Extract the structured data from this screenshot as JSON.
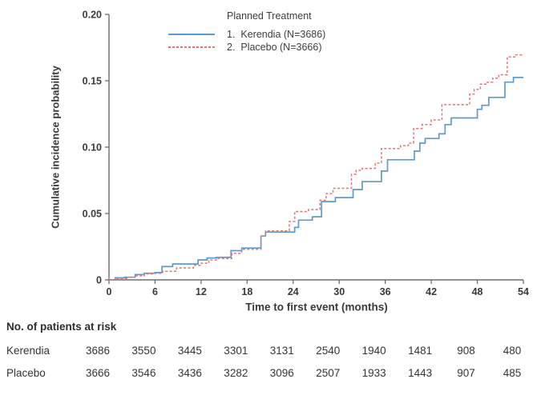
{
  "colors": {
    "axis": "#6d6e71",
    "text": "#3a3a3c",
    "kerendia_blue": "#5b9bd5",
    "placebo_red": "#e8736f"
  },
  "chart_data": {
    "type": "line",
    "step": true,
    "title": "",
    "xlabel": "Time to first event (months)",
    "ylabel": "Cumulative incidence probability",
    "xlim": [
      0,
      54
    ],
    "ylim": [
      0,
      0.2
    ],
    "xticks": [
      0,
      6,
      12,
      18,
      24,
      30,
      36,
      42,
      48,
      54
    ],
    "yticks": [
      0,
      0.05,
      0.1,
      0.15,
      0.2
    ],
    "ytick_labels": [
      "0",
      "0.05",
      "0.10",
      "0.15",
      "0.20"
    ],
    "grid": false,
    "legend": {
      "title": "Planned Treatment",
      "position": "top-left-of-plot"
    },
    "series": [
      {
        "slug": "kerendia",
        "name": "1.  Kerendia (N=3686)",
        "color": "#5b9bd5",
        "dash": "solid",
        "points": [
          [
            0,
            0
          ],
          [
            0.8,
            0.0015
          ],
          [
            2,
            0.002
          ],
          [
            3.4,
            0.004
          ],
          [
            4.6,
            0.005
          ],
          [
            6,
            0.0055
          ],
          [
            6.9,
            0.01
          ],
          [
            8.3,
            0.012
          ],
          [
            11.6,
            0.015
          ],
          [
            12.8,
            0.0165
          ],
          [
            14,
            0.017
          ],
          [
            15.9,
            0.022
          ],
          [
            17.3,
            0.024
          ],
          [
            19.8,
            0.033
          ],
          [
            20.4,
            0.036
          ],
          [
            24.2,
            0.0395
          ],
          [
            24.7,
            0.045
          ],
          [
            26.5,
            0.0475
          ],
          [
            27.7,
            0.059
          ],
          [
            29.5,
            0.062
          ],
          [
            31.8,
            0.068
          ],
          [
            33,
            0.074
          ],
          [
            35.5,
            0.082
          ],
          [
            36.3,
            0.0905
          ],
          [
            39.8,
            0.097
          ],
          [
            40.5,
            0.103
          ],
          [
            41.2,
            0.1065
          ],
          [
            43,
            0.11
          ],
          [
            43.8,
            0.117
          ],
          [
            44.6,
            0.122
          ],
          [
            48,
            0.1285
          ],
          [
            48.6,
            0.1315
          ],
          [
            49.5,
            0.1375
          ],
          [
            51.6,
            0.149
          ],
          [
            52.7,
            0.1525
          ],
          [
            54,
            0.1525
          ]
        ]
      },
      {
        "slug": "placebo",
        "name": "2.  Placebo (N=3666)",
        "color": "#e8736f",
        "dash": "dashed",
        "points": [
          [
            0,
            0
          ],
          [
            1,
            0.001
          ],
          [
            2.5,
            0.002
          ],
          [
            3.5,
            0.003
          ],
          [
            4.6,
            0.0045
          ],
          [
            6,
            0.005
          ],
          [
            7,
            0.0065
          ],
          [
            8.8,
            0.009
          ],
          [
            11,
            0.011
          ],
          [
            11.9,
            0.0125
          ],
          [
            13,
            0.015
          ],
          [
            14,
            0.016
          ],
          [
            16,
            0.02
          ],
          [
            17.3,
            0.023
          ],
          [
            19.8,
            0.033
          ],
          [
            20.4,
            0.037
          ],
          [
            23.5,
            0.044
          ],
          [
            24.2,
            0.0515
          ],
          [
            26,
            0.053
          ],
          [
            27.5,
            0.06
          ],
          [
            28.3,
            0.065
          ],
          [
            29.2,
            0.069
          ],
          [
            31.6,
            0.0795
          ],
          [
            32.2,
            0.0825
          ],
          [
            33,
            0.084
          ],
          [
            34.7,
            0.088
          ],
          [
            35.5,
            0.099
          ],
          [
            38,
            0.101
          ],
          [
            39,
            0.103
          ],
          [
            39.7,
            0.114
          ],
          [
            40.8,
            0.117
          ],
          [
            42,
            0.1205
          ],
          [
            43.4,
            0.132
          ],
          [
            47,
            0.14
          ],
          [
            47.6,
            0.1435
          ],
          [
            48.4,
            0.1475
          ],
          [
            49.3,
            0.149
          ],
          [
            50,
            0.152
          ],
          [
            50.8,
            0.1545
          ],
          [
            51.9,
            0.168
          ],
          [
            53,
            0.1695
          ],
          [
            54,
            0.1695
          ]
        ]
      }
    ]
  },
  "risk_table": {
    "title": "No. of patients at risk",
    "time_points": [
      0,
      6,
      12,
      18,
      24,
      30,
      36,
      42,
      48,
      54
    ],
    "rows": [
      {
        "label": "Kerendia",
        "counts": [
          "3686",
          "3550",
          "3445",
          "3301",
          "3131",
          "2540",
          "1940",
          "1481",
          "908",
          "480"
        ]
      },
      {
        "label": "Placebo",
        "counts": [
          "3666",
          "3546",
          "3436",
          "3282",
          "3096",
          "2507",
          "1933",
          "1443",
          "907",
          "485"
        ]
      }
    ]
  }
}
